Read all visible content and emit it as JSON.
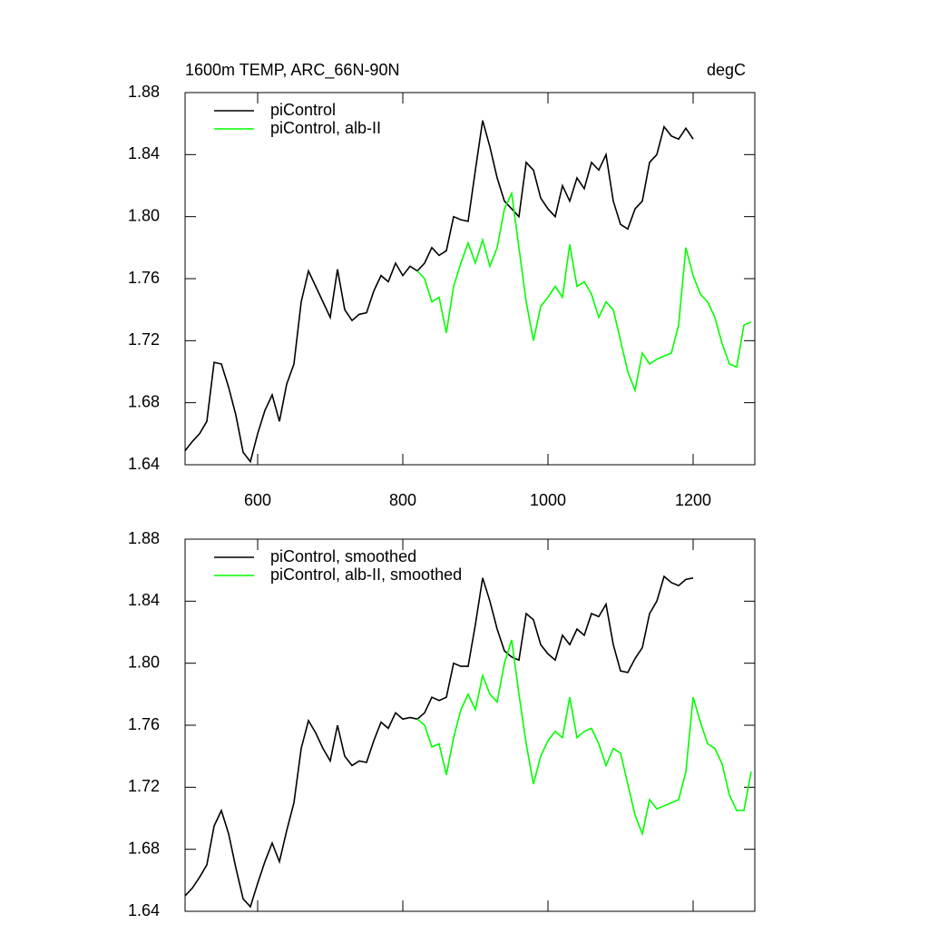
{
  "chart_data": [
    {
      "type": "line",
      "title": "1600m TEMP, ARC_66N-90N",
      "y_unit": "degC",
      "x": [
        500,
        510,
        520,
        530,
        540,
        550,
        560,
        570,
        580,
        590,
        600,
        610,
        620,
        630,
        640,
        650,
        660,
        670,
        680,
        690,
        700,
        710,
        720,
        730,
        740,
        750,
        760,
        770,
        780,
        790,
        800,
        810,
        820,
        830,
        840,
        850,
        860,
        870,
        880,
        890,
        900,
        910,
        920,
        930,
        940,
        950,
        960,
        970,
        980,
        990,
        1000,
        1010,
        1020,
        1030,
        1040,
        1050,
        1060,
        1070,
        1080,
        1090,
        1100,
        1110,
        1120,
        1130,
        1140,
        1150,
        1160,
        1170,
        1180,
        1190,
        1200,
        1210,
        1220,
        1230,
        1240,
        1250,
        1260,
        1270,
        1280
      ],
      "series": [
        {
          "name": "piControl",
          "color": "#000000",
          "values": [
            1.649,
            1.655,
            1.66,
            1.668,
            1.706,
            1.705,
            1.69,
            1.672,
            1.648,
            1.642,
            1.66,
            1.675,
            1.685,
            1.668,
            1.692,
            1.705,
            1.745,
            1.765,
            1.755,
            1.745,
            1.735,
            1.766,
            1.74,
            1.733,
            1.737,
            1.738,
            1.752,
            1.762,
            1.758,
            1.77,
            1.762,
            1.768,
            1.765,
            1.77,
            1.78,
            1.775,
            1.778,
            1.8,
            1.798,
            1.797,
            1.83,
            1.862,
            1.845,
            1.825,
            1.81,
            1.805,
            1.8,
            1.835,
            1.83,
            1.812,
            1.805,
            1.8,
            1.82,
            1.81,
            1.825,
            1.818,
            1.835,
            1.83,
            1.84,
            1.81,
            1.795,
            1.792,
            1.805,
            1.81,
            1.835,
            1.84,
            1.858,
            1.852,
            1.85,
            1.857,
            1.85,
            null,
            null,
            null,
            null,
            null,
            null,
            null,
            null
          ]
        },
        {
          "name": "piControl, alb-II",
          "color": "#00ff00",
          "values": [
            null,
            null,
            null,
            null,
            null,
            null,
            null,
            null,
            null,
            null,
            null,
            null,
            null,
            null,
            null,
            null,
            null,
            null,
            null,
            null,
            null,
            null,
            null,
            null,
            null,
            null,
            null,
            null,
            null,
            null,
            null,
            null,
            1.765,
            1.76,
            1.745,
            1.748,
            1.725,
            1.755,
            1.77,
            1.783,
            1.77,
            1.785,
            1.768,
            1.78,
            1.805,
            1.815,
            1.78,
            1.745,
            1.72,
            1.742,
            1.748,
            1.755,
            1.748,
            1.782,
            1.755,
            1.758,
            1.75,
            1.735,
            1.745,
            1.74,
            1.72,
            1.7,
            1.688,
            1.712,
            1.705,
            1.708,
            1.71,
            1.712,
            1.73,
            1.78,
            1.762,
            1.75,
            1.745,
            1.735,
            1.718,
            1.705,
            1.703,
            1.73,
            1.732
          ]
        }
      ],
      "xlim": [
        500,
        1285
      ],
      "xticks": [
        600,
        800,
        1000,
        1200
      ],
      "ylim": [
        1.64,
        1.88
      ],
      "yticks": [
        1.64,
        1.68,
        1.72,
        1.76,
        {
          "value": 1.8,
          "label": "1.80"
        },
        1.84,
        1.88
      ]
    },
    {
      "type": "line",
      "x": [
        500,
        510,
        520,
        530,
        540,
        550,
        560,
        570,
        580,
        590,
        600,
        610,
        620,
        630,
        640,
        650,
        660,
        670,
        680,
        690,
        700,
        710,
        720,
        730,
        740,
        750,
        760,
        770,
        780,
        790,
        800,
        810,
        820,
        830,
        840,
        850,
        860,
        870,
        880,
        890,
        900,
        910,
        920,
        930,
        940,
        950,
        960,
        970,
        980,
        990,
        1000,
        1010,
        1020,
        1030,
        1040,
        1050,
        1060,
        1070,
        1080,
        1090,
        1100,
        1110,
        1120,
        1130,
        1140,
        1150,
        1160,
        1170,
        1180,
        1190,
        1200,
        1210,
        1220,
        1230,
        1240,
        1250,
        1260,
        1270,
        1280
      ],
      "series": [
        {
          "name": "piControl, smoothed",
          "color": "#000000",
          "values": [
            1.65,
            1.655,
            1.662,
            1.67,
            1.695,
            1.705,
            1.69,
            1.668,
            1.648,
            1.643,
            1.658,
            1.672,
            1.684,
            1.672,
            1.692,
            1.71,
            1.745,
            1.763,
            1.755,
            1.745,
            1.737,
            1.76,
            1.74,
            1.734,
            1.737,
            1.736,
            1.75,
            1.762,
            1.758,
            1.768,
            1.764,
            1.765,
            1.764,
            1.768,
            1.778,
            1.776,
            1.778,
            1.8,
            1.798,
            1.798,
            1.825,
            1.855,
            1.84,
            1.822,
            1.808,
            1.804,
            1.802,
            1.832,
            1.828,
            1.812,
            1.806,
            1.802,
            1.818,
            1.812,
            1.822,
            1.818,
            1.832,
            1.83,
            1.838,
            1.812,
            1.795,
            1.794,
            1.803,
            1.81,
            1.832,
            1.84,
            1.856,
            1.852,
            1.85,
            1.854,
            1.855,
            null,
            null,
            null,
            null,
            null,
            null,
            null,
            null
          ]
        },
        {
          "name": "piControl, alb-II, smoothed",
          "color": "#00ff00",
          "values": [
            null,
            null,
            null,
            null,
            null,
            null,
            null,
            null,
            null,
            null,
            null,
            null,
            null,
            null,
            null,
            null,
            null,
            null,
            null,
            null,
            null,
            null,
            null,
            null,
            null,
            null,
            null,
            null,
            null,
            null,
            null,
            null,
            1.764,
            1.76,
            1.746,
            1.748,
            1.728,
            1.752,
            1.77,
            1.78,
            1.77,
            1.792,
            1.78,
            1.775,
            1.8,
            1.815,
            1.78,
            1.748,
            1.722,
            1.74,
            1.75,
            1.756,
            1.752,
            1.778,
            1.752,
            1.756,
            1.758,
            1.748,
            1.734,
            1.745,
            1.742,
            1.722,
            1.702,
            1.69,
            1.712,
            1.706,
            1.708,
            1.71,
            1.712,
            1.73,
            1.778,
            1.762,
            1.748,
            1.745,
            1.735,
            1.715,
            1.705,
            1.705,
            1.73
          ]
        }
      ],
      "xlim": [
        500,
        1285
      ],
      "xticks": [
        600,
        800,
        1000,
        1200
      ],
      "ylim": [
        1.64,
        1.88
      ],
      "yticks": [
        1.64,
        1.68,
        1.72,
        1.76,
        {
          "value": 1.8,
          "label": "1.80"
        },
        1.84,
        1.88
      ]
    }
  ]
}
